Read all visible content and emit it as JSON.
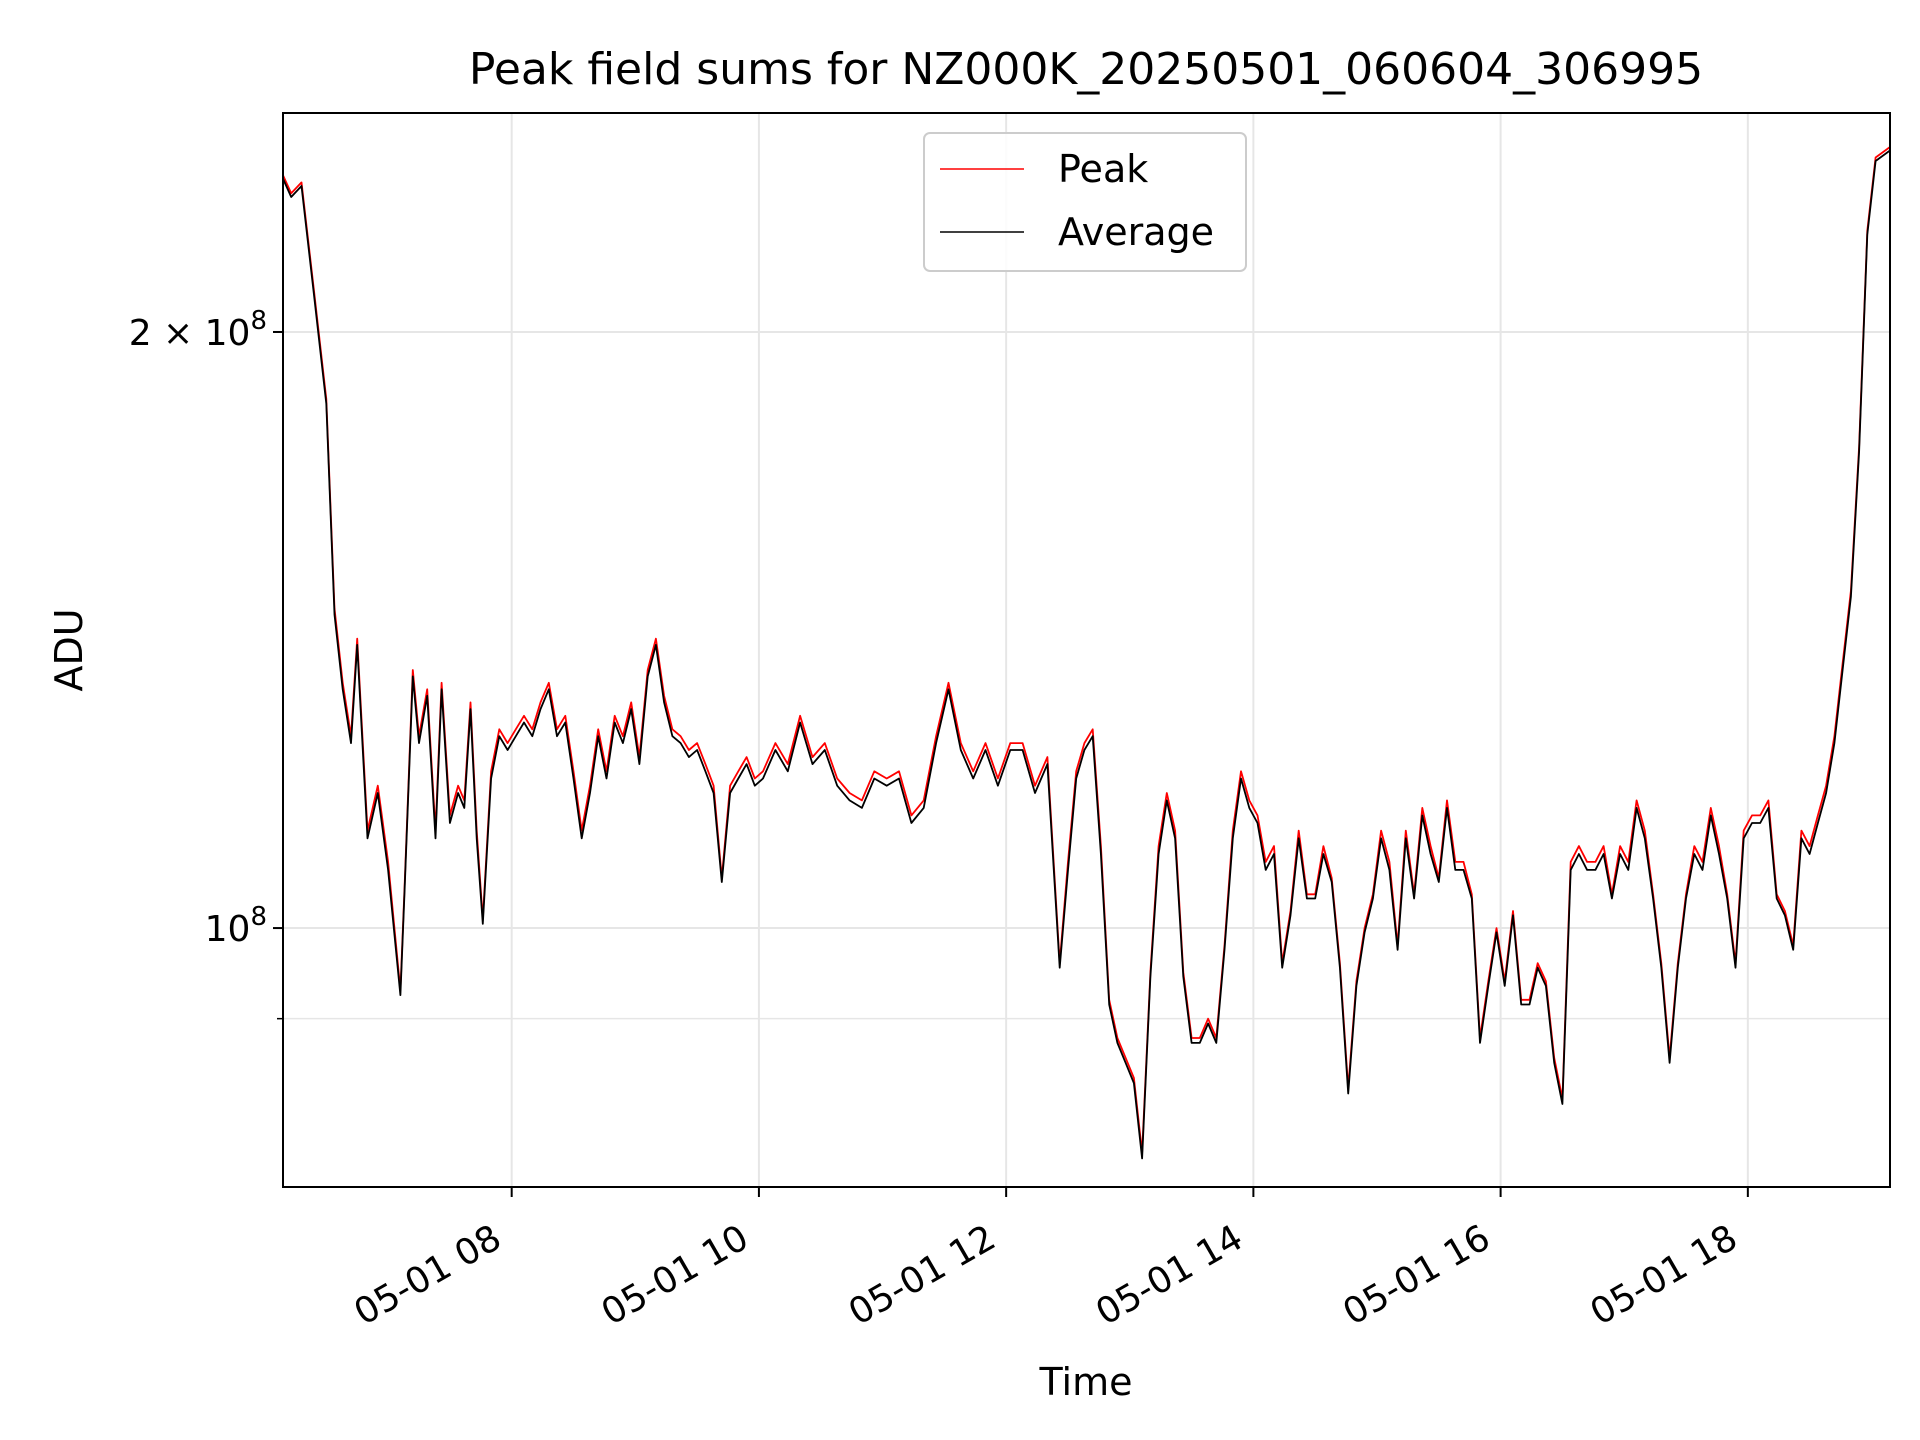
{
  "chart_data": {
    "type": "line",
    "title": "Peak field sums for NZ000K_20250501_060604_306995",
    "xlabel": "Time",
    "ylabel": "ADU",
    "y_scale": "log",
    "ylim": [
      74000000,
      258000000
    ],
    "xlim": [
      "2025-05-01T06:09",
      "2025-05-01T19:09"
    ],
    "x_ticks": [
      "2025-05-01T08:00",
      "2025-05-01T10:00",
      "2025-05-01T12:00",
      "2025-05-01T14:00",
      "2025-05-01T16:00",
      "2025-05-01T18:00"
    ],
    "x_tick_labels": [
      "05-01 08",
      "05-01 10",
      "05-01 12",
      "05-01 14",
      "05-01 16",
      "05-01 18"
    ],
    "y_major_ticks": [
      100000000,
      200000000
    ],
    "y_major_labels": [
      {
        "base": "10",
        "sup": "8"
      },
      {
        "base": "2 × 10",
        "sup": "8"
      }
    ],
    "y_minor_ticks": [
      90000000
    ],
    "grid": true,
    "legend_position": "upper center",
    "colors": {
      "peak": "#ff0000",
      "average": "#000000",
      "grid": "#e6e6e6"
    },
    "series": [
      {
        "name": "Peak",
        "x": [
          "2025-05-01T06:09",
          "2025-05-01T06:13",
          "2025-05-01T06:18",
          "2025-05-01T06:24",
          "2025-05-01T06:30",
          "2025-05-01T06:34",
          "2025-05-01T06:38",
          "2025-05-01T06:42",
          "2025-05-01T06:45",
          "2025-05-01T06:50",
          "2025-05-01T06:55",
          "2025-05-01T07:00",
          "2025-05-01T07:06",
          "2025-05-01T07:08",
          "2025-05-01T07:12",
          "2025-05-01T07:15",
          "2025-05-01T07:19",
          "2025-05-01T07:23",
          "2025-05-01T07:26",
          "2025-05-01T07:30",
          "2025-05-01T07:34",
          "2025-05-01T07:37",
          "2025-05-01T07:40",
          "2025-05-01T07:43",
          "2025-05-01T07:46",
          "2025-05-01T07:50",
          "2025-05-01T07:54",
          "2025-05-01T07:58",
          "2025-05-01T08:02",
          "2025-05-01T08:06",
          "2025-05-01T08:10",
          "2025-05-01T08:14",
          "2025-05-01T08:18",
          "2025-05-01T08:22",
          "2025-05-01T08:26",
          "2025-05-01T08:30",
          "2025-05-01T08:34",
          "2025-05-01T08:38",
          "2025-05-01T08:42",
          "2025-05-01T08:46",
          "2025-05-01T08:50",
          "2025-05-01T08:54",
          "2025-05-01T08:58",
          "2025-05-01T09:02",
          "2025-05-01T09:06",
          "2025-05-01T09:10",
          "2025-05-01T09:14",
          "2025-05-01T09:18",
          "2025-05-01T09:22",
          "2025-05-01T09:26",
          "2025-05-01T09:30",
          "2025-05-01T09:34",
          "2025-05-01T09:38",
          "2025-05-01T09:42",
          "2025-05-01T09:46",
          "2025-05-01T09:50",
          "2025-05-01T09:54",
          "2025-05-01T09:58",
          "2025-05-01T10:02",
          "2025-05-01T10:08",
          "2025-05-01T10:14",
          "2025-05-01T10:20",
          "2025-05-01T10:26",
          "2025-05-01T10:32",
          "2025-05-01T10:38",
          "2025-05-01T10:44",
          "2025-05-01T10:50",
          "2025-05-01T10:56",
          "2025-05-01T11:02",
          "2025-05-01T11:08",
          "2025-05-01T11:14",
          "2025-05-01T11:20",
          "2025-05-01T11:26",
          "2025-05-01T11:32",
          "2025-05-01T11:38",
          "2025-05-01T11:44",
          "2025-05-01T11:50",
          "2025-05-01T11:56",
          "2025-05-01T12:02",
          "2025-05-01T12:08",
          "2025-05-01T12:14",
          "2025-05-01T12:20",
          "2025-05-01T12:26",
          "2025-05-01T12:30",
          "2025-05-01T12:34",
          "2025-05-01T12:38",
          "2025-05-01T12:42",
          "2025-05-01T12:46",
          "2025-05-01T12:50",
          "2025-05-01T12:54",
          "2025-05-01T12:58",
          "2025-05-01T13:02",
          "2025-05-01T13:06",
          "2025-05-01T13:10",
          "2025-05-01T13:14",
          "2025-05-01T13:18",
          "2025-05-01T13:22",
          "2025-05-01T13:26",
          "2025-05-01T13:30",
          "2025-05-01T13:34",
          "2025-05-01T13:38",
          "2025-05-01T13:42",
          "2025-05-01T13:46",
          "2025-05-01T13:50",
          "2025-05-01T13:54",
          "2025-05-01T13:58",
          "2025-05-01T14:02",
          "2025-05-01T14:06",
          "2025-05-01T14:10",
          "2025-05-01T14:14",
          "2025-05-01T14:18",
          "2025-05-01T14:22",
          "2025-05-01T14:26",
          "2025-05-01T14:30",
          "2025-05-01T14:34",
          "2025-05-01T14:38",
          "2025-05-01T14:42",
          "2025-05-01T14:46",
          "2025-05-01T14:50",
          "2025-05-01T14:54",
          "2025-05-01T14:58",
          "2025-05-01T15:02",
          "2025-05-01T15:06",
          "2025-05-01T15:10",
          "2025-05-01T15:14",
          "2025-05-01T15:18",
          "2025-05-01T15:22",
          "2025-05-01T15:26",
          "2025-05-01T15:30",
          "2025-05-01T15:34",
          "2025-05-01T15:38",
          "2025-05-01T15:42",
          "2025-05-01T15:46",
          "2025-05-01T15:50",
          "2025-05-01T15:54",
          "2025-05-01T15:58",
          "2025-05-01T16:02",
          "2025-05-01T16:06",
          "2025-05-01T16:10",
          "2025-05-01T16:14",
          "2025-05-01T16:18",
          "2025-05-01T16:22",
          "2025-05-01T16:26",
          "2025-05-01T16:30",
          "2025-05-01T16:34",
          "2025-05-01T16:38",
          "2025-05-01T16:42",
          "2025-05-01T16:46",
          "2025-05-01T16:50",
          "2025-05-01T16:54",
          "2025-05-01T16:58",
          "2025-05-01T17:02",
          "2025-05-01T17:06",
          "2025-05-01T17:10",
          "2025-05-01T17:14",
          "2025-05-01T17:18",
          "2025-05-01T17:22",
          "2025-05-01T17:26",
          "2025-05-01T17:30",
          "2025-05-01T17:34",
          "2025-05-01T17:38",
          "2025-05-01T17:42",
          "2025-05-01T17:46",
          "2025-05-01T17:50",
          "2025-05-01T17:54",
          "2025-05-01T17:58",
          "2025-05-01T18:02",
          "2025-05-01T18:06",
          "2025-05-01T18:10",
          "2025-05-01T18:14",
          "2025-05-01T18:18",
          "2025-05-01T18:22",
          "2025-05-01T18:26",
          "2025-05-01T18:30",
          "2025-05-01T18:34",
          "2025-05-01T18:38",
          "2025-05-01T18:42",
          "2025-05-01T18:46",
          "2025-05-01T18:50",
          "2025-05-01T18:54",
          "2025-05-01T18:58",
          "2025-05-01T19:02",
          "2025-05-01T19:09"
        ],
        "y": [
          240000000,
          235000000,
          238000000,
          210000000,
          185000000,
          145000000,
          133000000,
          125000000,
          140000000,
          112000000,
          118000000,
          108000000,
          93000000,
          105000000,
          135000000,
          125000000,
          132000000,
          112000000,
          133000000,
          114000000,
          118000000,
          116000000,
          130000000,
          112000000,
          101000000,
          120000000,
          126000000,
          124000000,
          126000000,
          128000000,
          126000000,
          130000000,
          133000000,
          126000000,
          128000000,
          120000000,
          112000000,
          118000000,
          126000000,
          120000000,
          128000000,
          125000000,
          130000000,
          122000000,
          135000000,
          140000000,
          131000000,
          126000000,
          125000000,
          123000000,
          124000000,
          121000000,
          118000000,
          106000000,
          118000000,
          120000000,
          122000000,
          119000000,
          120000000,
          124000000,
          121000000,
          128000000,
          122000000,
          124000000,
          119000000,
          117000000,
          116000000,
          120000000,
          119000000,
          120000000,
          114000000,
          116000000,
          125000000,
          133000000,
          124000000,
          120000000,
          124000000,
          119000000,
          124000000,
          124000000,
          118000000,
          122000000,
          96000000,
          108000000,
          120000000,
          124000000,
          126000000,
          110000000,
          92000000,
          88000000,
          86000000,
          84000000,
          77000000,
          95000000,
          110000000,
          117000000,
          112000000,
          95000000,
          88000000,
          88000000,
          90000000,
          88000000,
          98000000,
          112000000,
          120000000,
          116000000,
          114000000,
          108000000,
          110000000,
          96000000,
          102000000,
          112000000,
          104000000,
          104000000,
          110000000,
          106000000,
          96000000,
          83000000,
          94000000,
          100000000,
          104000000,
          112000000,
          108000000,
          98000000,
          112000000,
          104000000,
          115000000,
          110000000,
          106000000,
          116000000,
          108000000,
          108000000,
          104000000,
          88000000,
          94000000,
          100000000,
          94000000,
          102000000,
          92000000,
          92000000,
          96000000,
          94000000,
          86000000,
          82000000,
          108000000,
          110000000,
          108000000,
          108000000,
          110000000,
          104000000,
          110000000,
          108000000,
          116000000,
          112000000,
          104000000,
          96000000,
          86000000,
          96000000,
          104000000,
          110000000,
          108000000,
          115000000,
          110000000,
          104000000,
          96000000,
          112000000,
          114000000,
          114000000,
          116000000,
          104000000,
          102000000,
          98000000,
          112000000,
          110000000,
          114000000,
          118000000,
          125000000,
          136000000,
          148000000,
          175000000,
          225000000,
          245000000,
          248000000
        ]
      },
      {
        "name": "Average",
        "x": [
          "2025-05-01T06:09",
          "2025-05-01T06:13",
          "2025-05-01T06:18",
          "2025-05-01T06:24",
          "2025-05-01T06:30",
          "2025-05-01T06:34",
          "2025-05-01T06:38",
          "2025-05-01T06:42",
          "2025-05-01T06:45",
          "2025-05-01T06:50",
          "2025-05-01T06:55",
          "2025-05-01T07:00",
          "2025-05-01T07:06",
          "2025-05-01T07:08",
          "2025-05-01T07:12",
          "2025-05-01T07:15",
          "2025-05-01T07:19",
          "2025-05-01T07:23",
          "2025-05-01T07:26",
          "2025-05-01T07:30",
          "2025-05-01T07:34",
          "2025-05-01T07:37",
          "2025-05-01T07:40",
          "2025-05-01T07:43",
          "2025-05-01T07:46",
          "2025-05-01T07:50",
          "2025-05-01T07:54",
          "2025-05-01T07:58",
          "2025-05-01T08:02",
          "2025-05-01T08:06",
          "2025-05-01T08:10",
          "2025-05-01T08:14",
          "2025-05-01T08:18",
          "2025-05-01T08:22",
          "2025-05-01T08:26",
          "2025-05-01T08:30",
          "2025-05-01T08:34",
          "2025-05-01T08:38",
          "2025-05-01T08:42",
          "2025-05-01T08:46",
          "2025-05-01T08:50",
          "2025-05-01T08:54",
          "2025-05-01T08:58",
          "2025-05-01T09:02",
          "2025-05-01T09:06",
          "2025-05-01T09:10",
          "2025-05-01T09:14",
          "2025-05-01T09:18",
          "2025-05-01T09:22",
          "2025-05-01T09:26",
          "2025-05-01T09:30",
          "2025-05-01T09:34",
          "2025-05-01T09:38",
          "2025-05-01T09:42",
          "2025-05-01T09:46",
          "2025-05-01T09:50",
          "2025-05-01T09:54",
          "2025-05-01T09:58",
          "2025-05-01T10:02",
          "2025-05-01T10:08",
          "2025-05-01T10:14",
          "2025-05-01T10:20",
          "2025-05-01T10:26",
          "2025-05-01T10:32",
          "2025-05-01T10:38",
          "2025-05-01T10:44",
          "2025-05-01T10:50",
          "2025-05-01T10:56",
          "2025-05-01T11:02",
          "2025-05-01T11:08",
          "2025-05-01T11:14",
          "2025-05-01T11:20",
          "2025-05-01T11:26",
          "2025-05-01T11:32",
          "2025-05-01T11:38",
          "2025-05-01T11:44",
          "2025-05-01T11:50",
          "2025-05-01T11:56",
          "2025-05-01T12:02",
          "2025-05-01T12:08",
          "2025-05-01T12:14",
          "2025-05-01T12:20",
          "2025-05-01T12:26",
          "2025-05-01T12:30",
          "2025-05-01T12:34",
          "2025-05-01T12:38",
          "2025-05-01T12:42",
          "2025-05-01T12:46",
          "2025-05-01T12:50",
          "2025-05-01T12:54",
          "2025-05-01T12:58",
          "2025-05-01T13:02",
          "2025-05-01T13:06",
          "2025-05-01T13:10",
          "2025-05-01T13:14",
          "2025-05-01T13:18",
          "2025-05-01T13:22",
          "2025-05-01T13:26",
          "2025-05-01T13:30",
          "2025-05-01T13:34",
          "2025-05-01T13:38",
          "2025-05-01T13:42",
          "2025-05-01T13:46",
          "2025-05-01T13:50",
          "2025-05-01T13:54",
          "2025-05-01T13:58",
          "2025-05-01T14:02",
          "2025-05-01T14:06",
          "2025-05-01T14:10",
          "2025-05-01T14:14",
          "2025-05-01T14:18",
          "2025-05-01T14:22",
          "2025-05-01T14:26",
          "2025-05-01T14:30",
          "2025-05-01T14:34",
          "2025-05-01T14:38",
          "2025-05-01T14:42",
          "2025-05-01T14:46",
          "2025-05-01T14:50",
          "2025-05-01T14:54",
          "2025-05-01T14:58",
          "2025-05-01T15:02",
          "2025-05-01T15:06",
          "2025-05-01T15:10",
          "2025-05-01T15:14",
          "2025-05-01T15:18",
          "2025-05-01T15:22",
          "2025-05-01T15:26",
          "2025-05-01T15:30",
          "2025-05-01T15:34",
          "2025-05-01T15:38",
          "2025-05-01T15:42",
          "2025-05-01T15:46",
          "2025-05-01T15:50",
          "2025-05-01T15:54",
          "2025-05-01T15:58",
          "2025-05-01T16:02",
          "2025-05-01T16:06",
          "2025-05-01T16:10",
          "2025-05-01T16:14",
          "2025-05-01T16:18",
          "2025-05-01T16:22",
          "2025-05-01T16:26",
          "2025-05-01T16:30",
          "2025-05-01T16:34",
          "2025-05-01T16:38",
          "2025-05-01T16:42",
          "2025-05-01T16:46",
          "2025-05-01T16:50",
          "2025-05-01T16:54",
          "2025-05-01T16:58",
          "2025-05-01T17:02",
          "2025-05-01T17:06",
          "2025-05-01T17:10",
          "2025-05-01T17:14",
          "2025-05-01T17:18",
          "2025-05-01T17:22",
          "2025-05-01T17:26",
          "2025-05-01T17:30",
          "2025-05-01T17:34",
          "2025-05-01T17:38",
          "2025-05-01T17:42",
          "2025-05-01T17:46",
          "2025-05-01T17:50",
          "2025-05-01T17:54",
          "2025-05-01T17:58",
          "2025-05-01T18:02",
          "2025-05-01T18:06",
          "2025-05-01T18:10",
          "2025-05-01T18:14",
          "2025-05-01T18:18",
          "2025-05-01T18:22",
          "2025-05-01T18:26",
          "2025-05-01T18:30",
          "2025-05-01T18:34",
          "2025-05-01T18:38",
          "2025-05-01T18:42",
          "2025-05-01T18:46",
          "2025-05-01T18:50",
          "2025-05-01T18:54",
          "2025-05-01T18:58",
          "2025-05-01T19:02",
          "2025-05-01T19:09"
        ],
        "y": [
          239000000,
          234000000,
          237000000,
          209000000,
          184000000,
          144000000,
          132000000,
          124000000,
          139000000,
          111000000,
          117000000,
          107000000,
          92500000,
          104500000,
          134000000,
          124000000,
          131000000,
          111000000,
          132000000,
          113000000,
          117000000,
          115000000,
          129000000,
          111000000,
          100500000,
          119000000,
          125000000,
          123000000,
          125000000,
          127000000,
          125000000,
          129000000,
          132000000,
          125000000,
          127000000,
          119000000,
          111000000,
          117000000,
          125000000,
          119000000,
          127000000,
          124000000,
          129000000,
          121000000,
          134000000,
          139000000,
          130000000,
          125000000,
          124000000,
          122000000,
          123000000,
          120000000,
          117000000,
          105500000,
          117000000,
          119000000,
          121000000,
          118000000,
          119000000,
          123000000,
          120000000,
          127000000,
          121000000,
          123000000,
          118000000,
          116000000,
          115000000,
          119000000,
          118000000,
          119000000,
          113000000,
          115000000,
          124000000,
          132000000,
          123000000,
          119000000,
          123000000,
          118000000,
          123000000,
          123000000,
          117000000,
          121000000,
          95500000,
          107000000,
          119000000,
          123000000,
          125000000,
          109000000,
          91500000,
          87500000,
          85500000,
          83500000,
          76500000,
          94500000,
          109000000,
          116000000,
          111000000,
          94500000,
          87500000,
          87500000,
          89500000,
          87500000,
          97500000,
          111000000,
          119000000,
          115000000,
          113000000,
          107000000,
          109000000,
          95500000,
          101500000,
          111000000,
          103500000,
          103500000,
          109000000,
          105500000,
          95500000,
          82500000,
          93500000,
          99500000,
          103500000,
          111000000,
          107000000,
          97500000,
          111000000,
          103500000,
          114000000,
          109000000,
          105500000,
          115000000,
          107000000,
          107000000,
          103500000,
          87500000,
          93500000,
          99500000,
          93500000,
          101500000,
          91500000,
          91500000,
          95500000,
          93500000,
          85500000,
          81500000,
          107000000,
          109000000,
          107000000,
          107000000,
          109000000,
          103500000,
          109000000,
          107000000,
          115000000,
          111000000,
          103500000,
          95500000,
          85500000,
          95500000,
          103500000,
          109000000,
          107000000,
          114000000,
          109000000,
          103500000,
          95500000,
          111000000,
          113000000,
          113000000,
          115000000,
          103500000,
          101500000,
          97500000,
          111000000,
          109000000,
          113000000,
          117000000,
          124000000,
          135000000,
          147000000,
          174000000,
          224000000,
          244000000,
          247000000
        ]
      }
    ]
  }
}
